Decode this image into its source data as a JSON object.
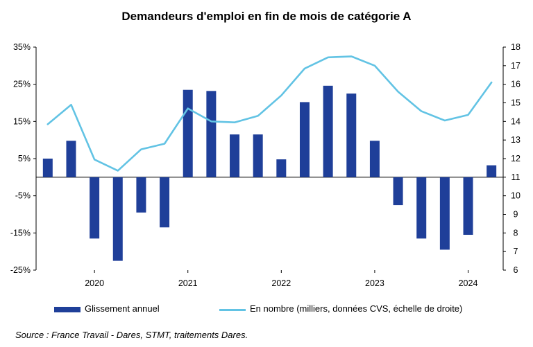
{
  "chart_data": {
    "type": "bar+line",
    "title": "Demandeurs d'emploi en fin de mois de catégorie A",
    "x_tick_labels": [
      "2020",
      "2021",
      "2022",
      "2023",
      "2024"
    ],
    "y_left": {
      "min": -25,
      "max": 35,
      "ticks": [
        -25,
        -15,
        -5,
        5,
        15,
        25,
        35
      ],
      "tick_labels": [
        "-25%",
        "-15%",
        "-5%",
        "5%",
        "15%",
        "25%",
        "35%"
      ]
    },
    "y_right": {
      "min": 6,
      "max": 18,
      "ticks": [
        6,
        7,
        8,
        9,
        10,
        11,
        12,
        13,
        14,
        15,
        16,
        17,
        18
      ],
      "tick_labels": [
        "6",
        "7",
        "8",
        "9",
        "10",
        "11",
        "12",
        "13",
        "14",
        "15",
        "16",
        "17",
        "18"
      ]
    },
    "x": [
      2019.5,
      2019.75,
      2020.0,
      2020.25,
      2020.5,
      2020.75,
      2021.0,
      2021.25,
      2021.5,
      2021.75,
      2022.0,
      2022.25,
      2022.5,
      2022.75,
      2023.0,
      2023.25,
      2023.5,
      2023.75,
      2024.0,
      2024.25
    ],
    "series": [
      {
        "name": "Glissement annuel",
        "type": "bar",
        "axis": "left",
        "color": "#1f3f99",
        "values": [
          5.0,
          9.8,
          -16.5,
          -22.5,
          -9.5,
          -13.5,
          23.5,
          23.2,
          11.5,
          11.5,
          4.8,
          20.2,
          24.6,
          22.5,
          9.8,
          -7.5,
          -16.5,
          -19.5,
          -15.5,
          3.2
        ]
      },
      {
        "name": "En nombre (milliers, données CVS, échelle de droite)",
        "type": "line",
        "axis": "right",
        "color": "#62c3e4",
        "values": [
          13.85,
          14.9,
          11.95,
          11.35,
          12.5,
          12.8,
          14.7,
          14.0,
          13.95,
          14.3,
          15.4,
          16.85,
          17.45,
          17.5,
          17.0,
          15.6,
          14.55,
          14.05,
          14.35,
          16.1
        ]
      }
    ],
    "legend_position": "bottom"
  },
  "legend": {
    "bar_label": "Glissement annuel",
    "line_label": "En nombre (milliers, données CVS, échelle de droite)"
  },
  "source": "Source : France Travail - Dares, STMT, traitements Dares."
}
